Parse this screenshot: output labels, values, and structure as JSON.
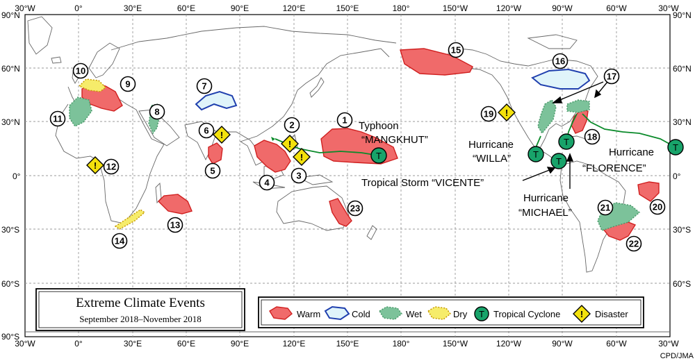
{
  "title": "Extreme Climate Events",
  "period": "September 2018–November 2018",
  "credit": "CPD/JMA",
  "lon_ticks": [
    "30°W",
    "0°",
    "30°E",
    "60°E",
    "90°E",
    "120°E",
    "150°E",
    "180°",
    "150°W",
    "120°W",
    "90°W",
    "60°W",
    "30°W"
  ],
  "lat_ticks": [
    "90°N",
    "60°N",
    "30°N",
    "0°",
    "30°S",
    "60°S",
    "90°S"
  ],
  "legend": {
    "warm": "Warm",
    "cold": "Cold",
    "wet": "Wet",
    "dry": "Dry",
    "tc": "Tropical Cyclone",
    "disaster": "Disaster"
  },
  "colors": {
    "warm": "#f06a6a",
    "cold": "#1f3fae",
    "wet": "#7cc29a",
    "dry": "#f2e24a",
    "tc": "#18a36a",
    "disaster": "#f3e10c"
  },
  "storms": {
    "mangkhut_1": "Typhoon",
    "mangkhut_2": "“MANGKHUT”",
    "willa_1": "Hurricane",
    "willa_2": "“WILLA”",
    "vicente": "Tropical Storm “VICENTE”",
    "michael_1": "Hurricane",
    "michael_2": "“MICHAEL”",
    "florence_1": "Hurricane",
    "florence_2": "“FLORENCE”"
  },
  "tc_symbol": "T",
  "disaster_symbol": "!",
  "events": [
    "1",
    "2",
    "3",
    "4",
    "5",
    "6",
    "7",
    "8",
    "9",
    "10",
    "11",
    "12",
    "13",
    "14",
    "15",
    "16",
    "17",
    "18",
    "19",
    "20",
    "21",
    "22",
    "23"
  ]
}
